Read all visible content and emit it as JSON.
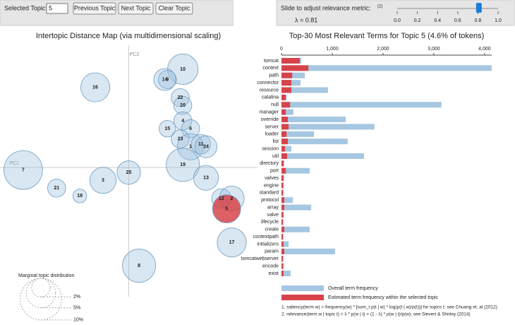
{
  "controls": {
    "selected_topic_label": "Selected Topic:",
    "selected_topic": 5,
    "buttons": [
      "Previous Topic",
      "Next Topic",
      "Clear Topic"
    ]
  },
  "slider": {
    "label": "Slide to adjust relevance metric:",
    "note": "(2)",
    "range": [
      0,
      1
    ],
    "lambda": {
      "value": 0.81,
      "label": "λ = 0.81"
    },
    "ticks": [
      {
        "value": 0,
        "label": "0.0"
      },
      {
        "value": 0.2,
        "label": "0.2"
      },
      {
        "value": 0.4,
        "label": "0.4"
      },
      {
        "value": 0.6,
        "label": "0.6"
      },
      {
        "value": 0.8,
        "label": "0.8"
      },
      {
        "value": 1,
        "label": "1.0"
      }
    ]
  },
  "chart_data": [
    {
      "type": "scatter",
      "title": "Intertopic Distance Map (via multidimensional scaling)",
      "x_label": "PC1",
      "y_label": "PC2",
      "xlim": [
        -0.5,
        0.5
      ],
      "ylim": [
        -0.5,
        0.47
      ],
      "color": "#9fc3de",
      "stroke": "#6f9cc2",
      "highlight_color": "#d6444a",
      "topics": [
        7,
        21,
        18,
        3,
        25,
        16,
        10,
        14,
        9,
        22,
        20,
        4,
        15,
        6,
        23,
        1,
        11,
        24,
        19,
        13,
        12,
        2,
        5,
        17,
        8
      ],
      "x": [
        -0.41,
        -0.28,
        -0.19,
        -0.1,
        0.0,
        -0.13,
        0.21,
        0.14,
        0.15,
        0.2,
        0.21,
        0.21,
        0.15,
        0.24,
        0.2,
        0.24,
        0.28,
        0.3,
        0.21,
        0.3,
        0.36,
        0.4,
        0.38,
        0.4,
        0.04
      ],
      "y": [
        -0.01,
        -0.08,
        -0.11,
        -0.05,
        -0.02,
        0.31,
        0.38,
        0.34,
        0.34,
        0.27,
        0.24,
        0.18,
        0.15,
        0.15,
        0.11,
        0.08,
        0.09,
        0.08,
        0.01,
        -0.04,
        -0.12,
        -0.12,
        -0.16,
        -0.29,
        -0.38
      ],
      "sizes": [
        8.7,
        1.9,
        1.1,
        4.0,
        3.2,
        4.9,
        5.4,
        2.8,
        1.9,
        1.9,
        1.9,
        1.9,
        1.6,
        1.9,
        1.9,
        4.0,
        2.2,
        2.8,
        6.4,
        3.6,
        2.2,
        3.6,
        4.6,
        4.9,
        6.4
      ],
      "size_legend": {
        "title": "Marginal topic distribution",
        "values": [
          {
            "value": 2,
            "label": "2%"
          },
          {
            "value": 5,
            "label": "5%"
          },
          {
            "value": 10,
            "label": "10%"
          }
        ]
      }
    },
    {
      "type": "bar",
      "orientation": "horizontal",
      "title": "Top-30 Most Relevant Terms for Topic 5 (4.6% of tokens)",
      "categories": [
        "tomcat",
        "context",
        "path",
        "connector",
        "resource",
        "catalina",
        "null",
        "manager",
        "override",
        "server",
        "loader",
        "list",
        "session",
        "util",
        "directory",
        "port",
        "valves",
        "engine",
        "standard",
        "protocol",
        "array",
        "valve",
        "lifecycle",
        "create",
        "contextpath",
        "initializers",
        "param",
        "tomcatwebserver",
        "encode",
        "exist"
      ],
      "series": [
        {
          "name": "Overall term frequency",
          "color": "#a6c7e1",
          "values": [
            390,
            4140,
            460,
            375,
            915,
            100,
            3150,
            235,
            1265,
            1830,
            640,
            1305,
            195,
            1625,
            55,
            555,
            50,
            45,
            40,
            225,
            585,
            45,
            35,
            555,
            35,
            140,
            1055,
            35,
            50,
            180
          ]
        },
        {
          "name": "Estimated term frequency within the selected topic",
          "color": "#d6444a",
          "values": [
            360,
            530,
            210,
            195,
            195,
            85,
            170,
            85,
            125,
            140,
            100,
            125,
            70,
            110,
            40,
            85,
            40,
            35,
            30,
            55,
            55,
            35,
            30,
            55,
            30,
            40,
            55,
            30,
            30,
            40
          ]
        }
      ],
      "xlim": [
        0,
        4140
      ],
      "xticks": [
        0,
        {
          "value": 1000,
          "label": "1,000"
        },
        {
          "value": 2000,
          "label": "2,000"
        },
        {
          "value": 3000,
          "label": "3,000"
        },
        {
          "value": 4000,
          "label": "4,000"
        }
      ]
    }
  ],
  "footnotes": [
    "1. saliency(term w) = frequency(w) * [sum_t p(t | w) * log(p(t | w)/p(t))] for topics t; see Chuang et. al (2012)",
    "2. relevance(term w | topic t) = λ * p(w | t) + (1 - λ) * p(w | t)/p(w); see Sievert & Shirley (2014)"
  ]
}
